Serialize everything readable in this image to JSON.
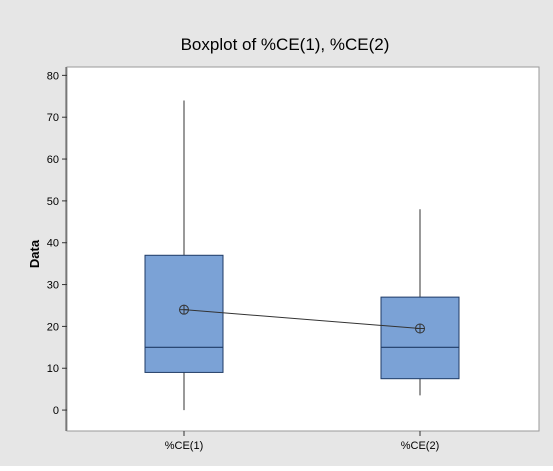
{
  "chart_data": {
    "type": "boxplot",
    "title": "Boxplot of %CE(1), %CE(2)",
    "ylabel": "Data",
    "xlabel": "",
    "categories": [
      "%CE(1)",
      "%CE(2)"
    ],
    "ylim": [
      -5,
      82
    ],
    "yticks": [
      0,
      10,
      20,
      30,
      40,
      50,
      60,
      70,
      80
    ],
    "grid": false,
    "legend": "none",
    "boxes": [
      {
        "category": "%CE(1)",
        "min": 0,
        "q1": 9,
        "median": 15,
        "q3": 37,
        "max": 74,
        "mean": 24
      },
      {
        "category": "%CE(2)",
        "min": 3.5,
        "q1": 7.5,
        "median": 15,
        "q3": 27,
        "max": 48,
        "mean": 19.5
      }
    ],
    "mean_connect_line": true,
    "colors": {
      "background": "#e6e6e6",
      "plot_area": "#ffffff",
      "box_fill": "#7ba2d6",
      "box_stroke": "#1f3b66",
      "line": "#333333"
    }
  }
}
